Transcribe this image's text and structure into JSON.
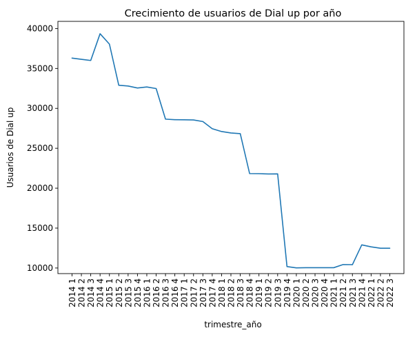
{
  "chart_data": {
    "type": "line",
    "title": "Crecimiento de usuarios de Dial up por año",
    "xlabel": "trimestre_año",
    "ylabel": "Usuarios de Dial up",
    "categories": [
      "2014 1",
      "2014 2",
      "2014 3",
      "2014 4",
      "2015 1",
      "2015 2",
      "2015 3",
      "2015 4",
      "2016 1",
      "2016 2",
      "2016 3",
      "2016 4",
      "2017 1",
      "2017 2",
      "2017 3",
      "2017 4",
      "2018 1",
      "2018 2",
      "2018 3",
      "2018 4",
      "2019 1",
      "2019 2",
      "2019 3",
      "2019 4",
      "2020 1",
      "2020 2",
      "2020 3",
      "2020 4",
      "2021 1",
      "2021 2",
      "2021 3",
      "2021 4",
      "2022 1",
      "2022 2",
      "2022 3"
    ],
    "series": [
      {
        "values": [
          36300,
          36150,
          36000,
          39350,
          38050,
          32900,
          32800,
          32550,
          32680,
          32480,
          28650,
          28580,
          28570,
          28550,
          28350,
          27450,
          27100,
          26920,
          26830,
          21830,
          21820,
          21780,
          21790,
          10180,
          10020,
          10040,
          10040,
          10040,
          10040,
          10430,
          10420,
          12900,
          12650,
          12480,
          12480
        ],
        "color": "#1f77b4"
      }
    ],
    "ylim": [
      9300,
      40900
    ],
    "yticks": [
      10000,
      15000,
      20000,
      25000,
      30000,
      35000,
      40000
    ],
    "grid": false,
    "legend": "none"
  }
}
